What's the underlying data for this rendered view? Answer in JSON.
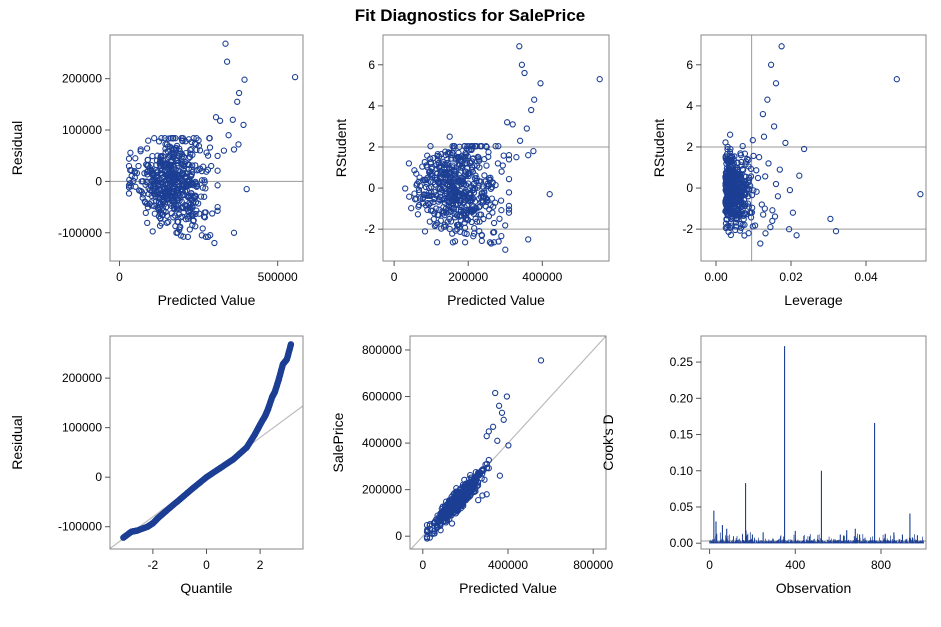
{
  "title": "Fit Diagnostics for SalePrice",
  "colors": {
    "marker": "#1c3f94",
    "refline": "#999999",
    "diag": "#bbbbbb",
    "frame": "#888888"
  },
  "chart_data": [
    {
      "id": "residual-vs-predicted",
      "type": "scatter",
      "xlabel": "Predicted Value",
      "ylabel": "Residual",
      "xlim": [
        -30000,
        580000
      ],
      "ylim": [
        -155000,
        285000
      ],
      "xticks": [
        "0",
        "500000"
      ],
      "xtick_values": [
        0,
        500000
      ],
      "yticks": [
        "-100000",
        "0",
        "100000",
        "200000"
      ],
      "ytick_values": [
        -100000,
        0,
        100000,
        200000
      ],
      "reflines": [
        {
          "axis": "y",
          "value": 0
        }
      ],
      "points": [
        [
          335000,
          268000
        ],
        [
          555000,
          203000
        ],
        [
          340000,
          233000
        ],
        [
          395000,
          198000
        ],
        [
          378000,
          172000
        ],
        [
          372000,
          155000
        ],
        [
          392000,
          110000
        ],
        [
          305000,
          125000
        ],
        [
          318000,
          118000
        ],
        [
          358000,
          120000
        ],
        [
          345000,
          90000
        ],
        [
          330000,
          60000
        ],
        [
          362000,
          62000
        ],
        [
          376000,
          72000
        ],
        [
          402000,
          -15000
        ],
        [
          362000,
          -100000
        ],
        [
          280000,
          -108000
        ],
        [
          300000,
          -120000
        ],
        [
          260000,
          -105000
        ],
        [
          150000,
          72000
        ],
        [
          120000,
          50000
        ],
        [
          180000,
          40000
        ],
        [
          210000,
          55000
        ],
        [
          90000,
          20000
        ],
        [
          60000,
          30000
        ],
        [
          50000,
          45000
        ],
        [
          100000,
          -10000
        ],
        [
          140000,
          -40000
        ],
        [
          170000,
          -70000
        ],
        [
          190000,
          -90000
        ],
        [
          220000,
          -60000
        ],
        [
          240000,
          -30000
        ],
        [
          260000,
          20000
        ],
        [
          280000,
          50000
        ],
        [
          230000,
          -85000
        ],
        [
          200000,
          -20000
        ],
        [
          160000,
          10000
        ],
        [
          130000,
          30000
        ],
        [
          110000,
          -5000
        ],
        [
          70000,
          0
        ],
        [
          250000,
          80000
        ],
        [
          290000,
          30000
        ],
        [
          310000,
          -50000
        ],
        [
          270000,
          -70000
        ],
        [
          180000,
          -100000
        ]
      ],
      "cloud": {
        "x": [
          30000,
          310000
        ],
        "y": [
          -90000,
          70000
        ],
        "n": 520
      }
    },
    {
      "id": "rstudent-vs-predicted",
      "type": "scatter",
      "xlabel": "Predicted Value",
      "ylabel": "RStudent",
      "xlim": [
        -30000,
        580000
      ],
      "ylim": [
        -3.55,
        7.45
      ],
      "xticks": [
        "0",
        "200000",
        "400000"
      ],
      "xtick_values": [
        0,
        200000,
        400000
      ],
      "yticks": [
        "-2",
        "0",
        "2",
        "4",
        "6"
      ],
      "ytick_values": [
        -2,
        0,
        2,
        4,
        6
      ],
      "reflines": [
        {
          "axis": "y",
          "value": -2
        },
        {
          "axis": "y",
          "value": 2
        }
      ],
      "points": [
        [
          338000,
          6.9
        ],
        [
          345000,
          6.0
        ],
        [
          352000,
          5.6
        ],
        [
          395000,
          5.1
        ],
        [
          555000,
          5.3
        ],
        [
          378000,
          4.3
        ],
        [
          370000,
          3.8
        ],
        [
          305000,
          3.2
        ],
        [
          320000,
          3.1
        ],
        [
          358000,
          2.9
        ],
        [
          340000,
          2.3
        ],
        [
          330000,
          1.5
        ],
        [
          362000,
          1.6
        ],
        [
          376000,
          1.8
        ],
        [
          420000,
          -0.3
        ],
        [
          362000,
          -2.5
        ],
        [
          282000,
          -2.6
        ],
        [
          300000,
          -3.0
        ],
        [
          262000,
          -2.7
        ],
        [
          150000,
          1.7
        ],
        [
          150000,
          2.5
        ],
        [
          120000,
          1.2
        ],
        [
          180000,
          1.0
        ],
        [
          210000,
          1.3
        ],
        [
          90000,
          0.5
        ],
        [
          60000,
          0.7
        ],
        [
          40000,
          1.2
        ],
        [
          100000,
          -0.2
        ],
        [
          140000,
          -1.0
        ],
        [
          170000,
          -1.8
        ],
        [
          190000,
          -2.2
        ],
        [
          220000,
          -1.5
        ],
        [
          240000,
          -0.7
        ],
        [
          260000,
          0.5
        ],
        [
          280000,
          1.2
        ],
        [
          230000,
          -2.1
        ],
        [
          200000,
          -0.5
        ],
        [
          160000,
          0.3
        ],
        [
          130000,
          0.8
        ],
        [
          250000,
          2.0
        ],
        [
          290000,
          0.8
        ],
        [
          310000,
          -1.2
        ],
        [
          270000,
          -1.7
        ]
      ],
      "cloud": {
        "x": [
          30000,
          310000
        ],
        "y": [
          -2.2,
          1.7
        ],
        "n": 520
      }
    },
    {
      "id": "rstudent-vs-leverage",
      "type": "scatter",
      "xlabel": "Leverage",
      "ylabel": "RStudent",
      "xlim": [
        -0.004,
        0.056
      ],
      "ylim": [
        -3.55,
        7.45
      ],
      "xticks": [
        "0.00",
        "0.02",
        "0.04"
      ],
      "xtick_values": [
        0,
        0.02,
        0.04
      ],
      "yticks": [
        "-2",
        "0",
        "2",
        "4",
        "6"
      ],
      "ytick_values": [
        -2,
        0,
        2,
        4,
        6
      ],
      "reflines": [
        {
          "axis": "y",
          "value": -2
        },
        {
          "axis": "y",
          "value": 2
        },
        {
          "axis": "x",
          "value": 0.0095
        }
      ],
      "points": [
        [
          0.0175,
          6.9
        ],
        [
          0.0147,
          6.0
        ],
        [
          0.016,
          5.1
        ],
        [
          0.0482,
          5.3
        ],
        [
          0.0545,
          -0.3
        ],
        [
          0.0137,
          4.3
        ],
        [
          0.0125,
          3.6
        ],
        [
          0.0155,
          3.0
        ],
        [
          0.0185,
          2.2
        ],
        [
          0.0235,
          1.9
        ],
        [
          0.0222,
          0.6
        ],
        [
          0.0197,
          -0.1
        ],
        [
          0.0165,
          -0.4
        ],
        [
          0.0205,
          -1.2
        ],
        [
          0.0195,
          -2.0
        ],
        [
          0.0215,
          -2.3
        ],
        [
          0.0305,
          -1.5
        ],
        [
          0.032,
          -2.1
        ],
        [
          0.015,
          -1.6
        ],
        [
          0.013,
          -1.0
        ],
        [
          0.0118,
          -2.7
        ],
        [
          0.0122,
          -0.8
        ],
        [
          0.017,
          0.9
        ],
        [
          0.014,
          1.2
        ],
        [
          0.0128,
          2.5
        ],
        [
          0.0115,
          1.5
        ],
        [
          0.0132,
          -2.2
        ],
        [
          0.0145,
          -1.9
        ],
        [
          0.016,
          0.2
        ]
      ],
      "cloud": {
        "x": [
          0.0005,
          0.0105
        ],
        "y": [
          -2.4,
          2.4
        ],
        "n": 470
      }
    },
    {
      "id": "residual-qq",
      "type": "scatter",
      "xlabel": "Quantile",
      "ylabel": "Residual",
      "xlim": [
        -3.6,
        3.6
      ],
      "ylim": [
        -145000,
        285000
      ],
      "xticks": [
        "-2",
        "0",
        "2"
      ],
      "xtick_values": [
        -2,
        0,
        2
      ],
      "yticks": [
        "-100000",
        "0",
        "100000",
        "200000"
      ],
      "ytick_values": [
        -100000,
        0,
        100000,
        200000
      ],
      "refline_slope": {
        "intercept": 0,
        "slope": 40000
      },
      "qq_points": [
        [
          -3.1,
          -122000
        ],
        [
          -2.8,
          -110000
        ],
        [
          -2.6,
          -108000
        ],
        [
          -2.2,
          -100000
        ],
        [
          -2.0,
          -93000
        ],
        [
          -1.8,
          -82000
        ],
        [
          -1.5,
          -68000
        ],
        [
          -1.0,
          -45000
        ],
        [
          -0.5,
          -22000
        ],
        [
          0.0,
          0
        ],
        [
          0.5,
          18000
        ],
        [
          1.0,
          36000
        ],
        [
          1.5,
          60000
        ],
        [
          1.8,
          86000
        ],
        [
          2.0,
          106000
        ],
        [
          2.2,
          125000
        ],
        [
          2.3,
          138000
        ],
        [
          2.45,
          162000
        ],
        [
          2.55,
          172000
        ],
        [
          2.7,
          198000
        ],
        [
          2.85,
          228000
        ],
        [
          3.0,
          238000
        ],
        [
          3.15,
          268000
        ]
      ],
      "qq_count": 420
    },
    {
      "id": "saleprice-vs-predicted",
      "type": "scatter",
      "xlabel": "Predicted Value",
      "ylabel": "SalePrice",
      "xlim": [
        -60000,
        860000
      ],
      "ylim": [
        -55000,
        860000
      ],
      "xticks": [
        "0",
        "400000",
        "800000"
      ],
      "xtick_values": [
        0,
        400000,
        800000
      ],
      "yticks": [
        "0",
        "200000",
        "400000",
        "600000",
        "800000"
      ],
      "ytick_values": [
        0,
        200000,
        400000,
        600000,
        800000
      ],
      "diag": true,
      "points": [
        [
          555000,
          755000
        ],
        [
          340000,
          615000
        ],
        [
          395000,
          600000
        ],
        [
          358000,
          560000
        ],
        [
          372000,
          530000
        ],
        [
          380000,
          500000
        ],
        [
          300000,
          430000
        ],
        [
          310000,
          450000
        ],
        [
          330000,
          470000
        ],
        [
          402000,
          390000
        ],
        [
          362000,
          260000
        ],
        [
          280000,
          175000
        ],
        [
          300000,
          180000
        ],
        [
          260000,
          155000
        ],
        [
          350000,
          410000
        ]
      ],
      "cloud": {
        "x": [
          20000,
          310000
        ],
        "n": 520
      }
    },
    {
      "id": "cooks-d",
      "type": "bar",
      "xlabel": "Observation",
      "ylabel": "Cook's D",
      "xlim": [
        -40,
        1010
      ],
      "ylim": [
        -0.008,
        0.286
      ],
      "xticks": [
        "0",
        "400",
        "800"
      ],
      "xtick_values": [
        0,
        400,
        800
      ],
      "yticks": [
        "0.00",
        "0.05",
        "0.10",
        "0.15",
        "0.20",
        "0.25"
      ],
      "ytick_values": [
        0,
        0.05,
        0.1,
        0.15,
        0.2,
        0.25
      ],
      "reflines": [
        {
          "axis": "y",
          "value": 0.003
        }
      ],
      "spikes": [
        [
          350,
          0.272
        ],
        [
          770,
          0.166
        ],
        [
          522,
          0.1
        ],
        [
          168,
          0.083
        ],
        [
          20,
          0.045
        ],
        [
          935,
          0.041
        ],
        [
          30,
          0.03
        ],
        [
          60,
          0.025
        ],
        [
          80,
          0.02
        ],
        [
          200,
          0.012
        ],
        [
          250,
          0.015
        ],
        [
          400,
          0.017
        ],
        [
          440,
          0.01
        ],
        [
          610,
          0.012
        ],
        [
          640,
          0.018
        ],
        [
          680,
          0.02
        ],
        [
          700,
          0.012
        ],
        [
          820,
          0.013
        ],
        [
          860,
          0.015
        ],
        [
          900,
          0.012
        ],
        [
          970,
          0.011
        ]
      ],
      "n": 1000
    }
  ]
}
